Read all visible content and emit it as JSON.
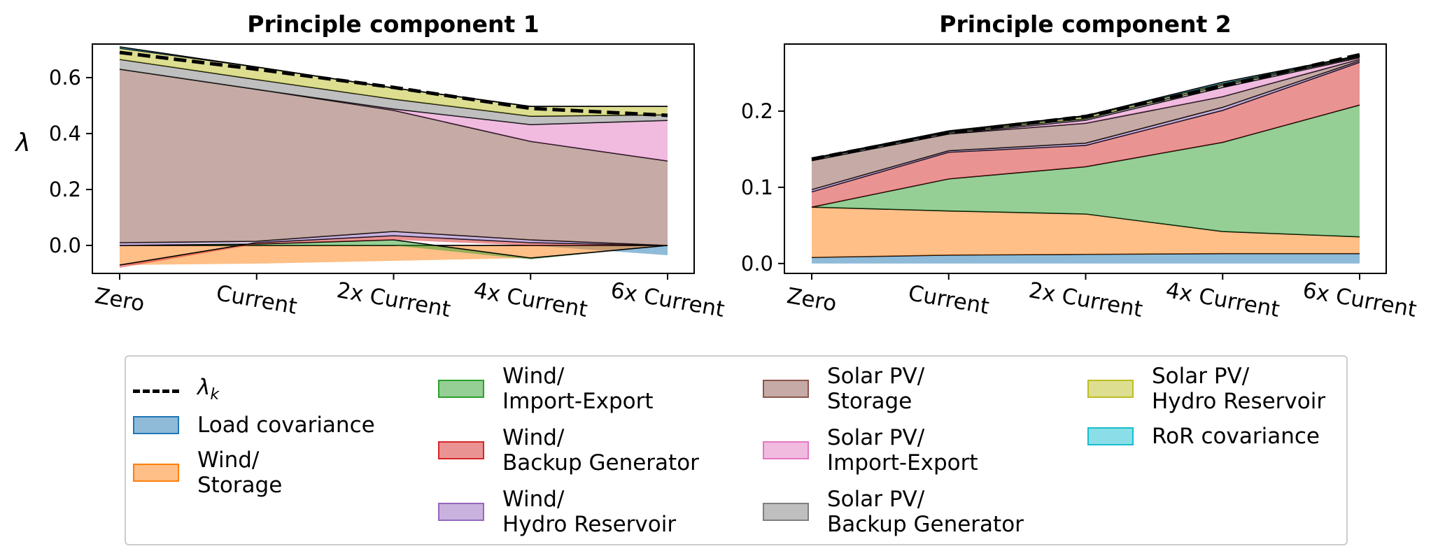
{
  "colors": {
    "load": "#1f77b4",
    "wind_storage": "#ff7f0e",
    "wind_ie": "#2ca02c",
    "wind_backup": "#d62728",
    "wind_hydro": "#9467bd",
    "solar_storage": "#8c564b",
    "solar_ie": "#e377c2",
    "solar_backup": "#7f7f7f",
    "solar_hydro": "#bcbd22",
    "ror": "#17becf"
  },
  "legend": {
    "lambda_symbol": "λ",
    "lambda_sub": "k",
    "items": [
      {
        "key": "load",
        "label": "Load covariance"
      },
      {
        "key": "wind_storage",
        "label": "Wind/\nStorage"
      },
      {
        "key": "wind_ie",
        "label": "Wind/\nImport-Export"
      },
      {
        "key": "wind_backup",
        "label": "Wind/\nBackup Generator"
      },
      {
        "key": "wind_hydro",
        "label": "Wind/\nHydro Reservoir"
      },
      {
        "key": "solar_storage",
        "label": "Solar PV/\nStorage"
      },
      {
        "key": "solar_ie",
        "label": "Solar PV/\nImport-Export"
      },
      {
        "key": "solar_backup",
        "label": "Solar PV/\nBackup Generator"
      },
      {
        "key": "solar_hydro",
        "label": "Solar PV/\nHydro Reservoir"
      },
      {
        "key": "ror",
        "label": "RoR covariance"
      }
    ]
  },
  "chart_data": [
    {
      "type": "area",
      "title": "Principle component 1",
      "ylabel": "λ",
      "categories": [
        "Zero",
        "Current",
        "2x Current",
        "4x Current",
        "6x Current"
      ],
      "ylim": [
        -0.1,
        0.72
      ],
      "yticks": [
        "0.0",
        "0.2",
        "0.4",
        "0.6"
      ],
      "series": [
        {
          "key": "load",
          "values": [
            0.0,
            0.0,
            0.0,
            0.0,
            -0.035
          ]
        },
        {
          "key": "wind_storage",
          "values": [
            -0.07,
            -0.065,
            -0.055,
            -0.045,
            0.0
          ]
        },
        {
          "key": "wind_ie",
          "values": [
            0.0,
            0.005,
            0.02,
            -0.005,
            0.0
          ]
        },
        {
          "key": "wind_backup",
          "values": [
            -0.01,
            0.005,
            0.015,
            0.01,
            0.0
          ]
        },
        {
          "key": "wind_hydro",
          "values": [
            0.01,
            0.005,
            0.015,
            0.01,
            0.0
          ]
        },
        {
          "key": "solar_storage",
          "values": [
            0.62,
            0.543,
            0.433,
            0.352,
            0.302
          ]
        },
        {
          "key": "solar_ie",
          "values": [
            0.0,
            0.0,
            0.005,
            0.06,
            0.145
          ]
        },
        {
          "key": "solar_backup",
          "values": [
            0.035,
            0.035,
            0.035,
            0.03,
            0.02
          ]
        },
        {
          "key": "solar_hydro",
          "values": [
            0.04,
            0.045,
            0.04,
            0.035,
            0.03
          ]
        },
        {
          "key": "ror",
          "values": [
            0.005,
            0.0,
            0.0,
            0.0,
            0.0
          ]
        }
      ],
      "lambda_k": [
        0.69,
        0.63,
        0.565,
        0.49,
        0.465
      ]
    },
    {
      "type": "area",
      "title": "Principle component 2",
      "ylabel": "",
      "categories": [
        "Zero",
        "Current",
        "2x Current",
        "4x Current",
        "6x Current"
      ],
      "ylim": [
        -0.013,
        0.288
      ],
      "yticks": [
        "0.0",
        "0.1",
        "0.2"
      ],
      "series": [
        {
          "key": "load",
          "values": [
            0.008,
            0.011,
            0.012,
            0.013,
            0.013
          ]
        },
        {
          "key": "wind_storage",
          "values": [
            0.066,
            0.058,
            0.053,
            0.029,
            0.022
          ]
        },
        {
          "key": "wind_ie",
          "values": [
            0.0,
            0.042,
            0.062,
            0.117,
            0.173
          ]
        },
        {
          "key": "wind_backup",
          "values": [
            0.02,
            0.035,
            0.028,
            0.042,
            0.056
          ]
        },
        {
          "key": "wind_hydro",
          "values": [
            0.003,
            0.002,
            0.003,
            0.004,
            0.002
          ]
        },
        {
          "key": "solar_storage",
          "values": [
            0.038,
            0.022,
            0.026,
            0.014,
            0.002
          ]
        },
        {
          "key": "solar_ie",
          "values": [
            0.0,
            0.0,
            0.004,
            0.012,
            0.002
          ]
        },
        {
          "key": "solar_backup",
          "values": [
            0.002,
            0.002,
            0.002,
            0.003,
            0.001
          ]
        },
        {
          "key": "solar_hydro",
          "values": [
            0.0,
            0.001,
            0.003,
            0.002,
            0.001
          ]
        },
        {
          "key": "ror",
          "values": [
            0.001,
            0.001,
            0.001,
            0.002,
            0.001
          ]
        }
      ],
      "lambda_k": [
        0.137,
        0.172,
        0.193,
        0.233,
        0.274
      ]
    }
  ]
}
